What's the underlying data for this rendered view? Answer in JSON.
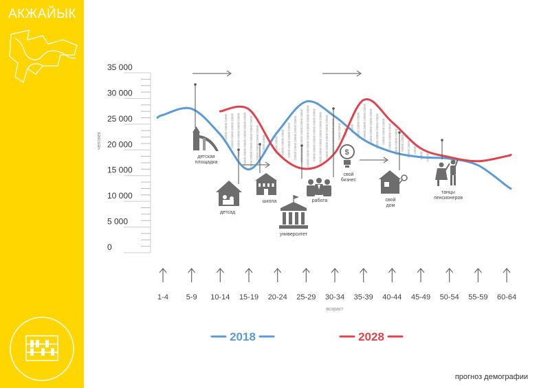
{
  "brand": {
    "title": "АКЖАЙЫК"
  },
  "footer": {
    "caption": "прогноз демографии"
  },
  "colors": {
    "sidebar": "#ffd600",
    "series_2018": "#5b9bd5",
    "series_2028": "#e0434b",
    "people": "#c8c8c8",
    "icons": "#6d6d6d"
  },
  "icons": [
    "map-icon",
    "abacus-icon",
    "playground-icon",
    "kindergarten-icon",
    "school-icon",
    "university-icon",
    "work-icon",
    "business-icon",
    "home-icon",
    "dance-icon"
  ],
  "chart_data": {
    "type": "line",
    "title": "",
    "xlabel": "возраст",
    "ylabel": "человек",
    "ylim": [
      0,
      35000
    ],
    "yticks": [
      0,
      5000,
      10000,
      15000,
      20000,
      25000,
      30000,
      35000
    ],
    "ytick_labels": [
      "0",
      "5 000",
      "10 000",
      "15 000",
      "20 000",
      "25 000",
      "30 000",
      "35 000"
    ],
    "categories": [
      "1-4",
      "5-9",
      "10-14",
      "15-19",
      "20-24",
      "25-29",
      "30-34",
      "35-39",
      "40-44",
      "45-49",
      "50-54",
      "55-59",
      "60-64"
    ],
    "legend": "bottom",
    "series": [
      {
        "name": "2018",
        "color": "#5b9bd5",
        "values": [
          26800,
          28000,
          23000,
          16200,
          23500,
          29400,
          26500,
          22000,
          19600,
          18600,
          18300,
          17000,
          13000
        ]
      },
      {
        "name": "2028",
        "color": "#e0434b",
        "values": [
          null,
          null,
          27500,
          27900,
          19400,
          16300,
          19400,
          29700,
          25400,
          20300,
          18600,
          17800,
          18800
        ]
      }
    ],
    "annotations": [
      {
        "label": "детская площадка",
        "icon": "playground-icon",
        "x": "5-9"
      },
      {
        "label": "детсад",
        "icon": "kindergarten-icon",
        "x": "10-14"
      },
      {
        "label": "школа",
        "icon": "school-icon",
        "x": "15-19"
      },
      {
        "label": "университет",
        "icon": "university-icon",
        "x": "20-24"
      },
      {
        "label": "работа",
        "icon": "work-icon",
        "x": "25-29"
      },
      {
        "label": "свой бизнес",
        "icon": "business-icon",
        "x": "30-34"
      },
      {
        "label": "свой дом",
        "icon": "home-icon",
        "x": "40-44"
      },
      {
        "label": "танцы пенсионеров",
        "icon": "dance-icon",
        "x": "50-54"
      }
    ]
  }
}
